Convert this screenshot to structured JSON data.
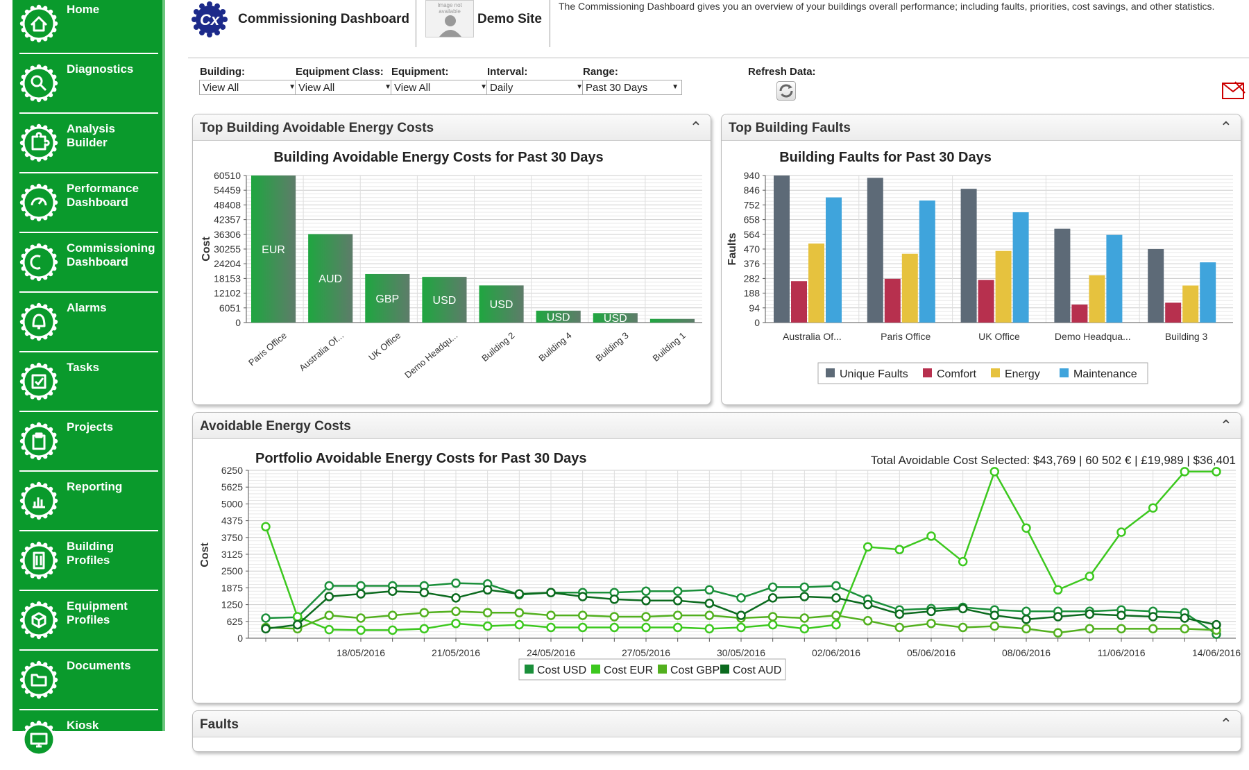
{
  "sidebar": {
    "items": [
      {
        "label": "Home",
        "icon": "home-icon"
      },
      {
        "label": "Diagnostics",
        "icon": "diagnostics-icon"
      },
      {
        "label": "Analysis Builder",
        "icon": "puzzle-icon"
      },
      {
        "label": "Performance Dashboard",
        "icon": "gauge-icon"
      },
      {
        "label": "Commissioning Dashboard",
        "icon": "cx-icon"
      },
      {
        "label": "Alarms",
        "icon": "bell-icon"
      },
      {
        "label": "Tasks",
        "icon": "checkbox-icon"
      },
      {
        "label": "Projects",
        "icon": "clipboard-icon"
      },
      {
        "label": "Reporting",
        "icon": "bar-chart-icon"
      },
      {
        "label": "Building Profiles",
        "icon": "building-icon"
      },
      {
        "label": "Equipment Profiles",
        "icon": "cube-icon"
      },
      {
        "label": "Documents",
        "icon": "folder-icon"
      },
      {
        "label": "Kiosk",
        "icon": "monitor-icon"
      }
    ]
  },
  "header": {
    "title": "Commissioning Dashboard",
    "logo_text": "Cx",
    "site_name": "Demo Site",
    "site_image_text": "Image not available",
    "description": "The Commissioning Dashboard gives you an overview of your buildings overall performance; including faults, priorities, cost savings, and other statistics."
  },
  "filters": [
    {
      "label": "Building:",
      "value": "View All"
    },
    {
      "label": "Equipment Class:",
      "value": "View All"
    },
    {
      "label": "Equipment:",
      "value": "View All"
    },
    {
      "label": "Interval:",
      "value": "Daily"
    },
    {
      "label": "Range:",
      "value": "Past 30 Days"
    }
  ],
  "refresh_label": "Refresh Data:",
  "panels": {
    "costs": "Top Building Avoidable Energy Costs",
    "faults": "Top Building Faults",
    "avoidable": "Avoidable Energy Costs",
    "faults_bottom": "Faults"
  },
  "colors": {
    "accent": "#0a9a2c",
    "unique": "#5d6a77",
    "comfort": "#b7304e",
    "energy": "#e6c23e",
    "maintenance": "#3fa4dc",
    "usd": "#1a8f3a",
    "eur": "#3cc81e",
    "gbp": "#52b01e",
    "aud": "#0b6a1e"
  },
  "chart_data": [
    {
      "type": "bar",
      "title": "Building Avoidable Energy Costs for Past 30 Days",
      "ylabel": "Cost",
      "ylim": [
        0,
        60510
      ],
      "yticks": [
        "60510",
        "54459",
        "48408",
        "42357",
        "36306",
        "30255",
        "24204",
        "18153",
        "12102",
        "6051",
        "0"
      ],
      "categories": [
        "Paris Office",
        "Australia Of...",
        "UK Office",
        "Demo Headqu...",
        "Building 2",
        "Building 4",
        "Building 3",
        "Building 1"
      ],
      "values": [
        60502,
        36401,
        19989,
        18800,
        15300,
        4900,
        3900,
        1500
      ],
      "labels": [
        "EUR",
        "AUD",
        "GBP",
        "USD",
        "USD",
        "USD",
        "USD",
        ""
      ]
    },
    {
      "type": "bar",
      "title": "Building Faults for Past 30 Days",
      "ylabel": "Faults",
      "ylim": [
        0,
        940
      ],
      "yticks": [
        "940",
        "846",
        "752",
        "658",
        "564",
        "470",
        "376",
        "282",
        "188",
        "94",
        "0"
      ],
      "categories": [
        "Australia Of...",
        "Paris Office",
        "UK Office",
        "Demo Headqua...",
        "Building 3"
      ],
      "series": [
        {
          "name": "Unique Faults",
          "values": [
            940,
            925,
            855,
            600,
            470
          ]
        },
        {
          "name": "Comfort",
          "values": [
            265,
            280,
            272,
            115,
            127
          ]
        },
        {
          "name": "Energy",
          "values": [
            505,
            440,
            458,
            302,
            237
          ]
        },
        {
          "name": "Maintenance",
          "values": [
            800,
            780,
            705,
            560,
            385
          ]
        }
      ]
    },
    {
      "type": "line",
      "title": "Portfolio Avoidable Energy Costs for Past 30 Days",
      "summary": "Total Avoidable Cost Selected: $43,769 | 60 502 € | £19,989 | $36,401",
      "ylabel": "Cost",
      "ylim": [
        0,
        6250
      ],
      "yticks": [
        "6250",
        "5625",
        "5000",
        "4375",
        "3750",
        "3125",
        "2500",
        "1875",
        "1250",
        "625",
        "0"
      ],
      "x": [
        "15/05/2016",
        "16/05/2016",
        "17/05/2016",
        "18/05/2016",
        "19/05/2016",
        "20/05/2016",
        "21/05/2016",
        "22/05/2016",
        "23/05/2016",
        "24/05/2016",
        "25/05/2016",
        "26/05/2016",
        "27/05/2016",
        "28/05/2016",
        "29/05/2016",
        "30/05/2016",
        "31/05/2016",
        "01/06/2016",
        "02/06/2016",
        "03/06/2016",
        "04/06/2016",
        "05/06/2016",
        "06/06/2016",
        "07/06/2016",
        "08/06/2016",
        "09/06/2016",
        "10/06/2016",
        "11/06/2016",
        "12/06/2016",
        "13/06/2016",
        "14/06/2016"
      ],
      "xticks": [
        "18/05/2016",
        "21/05/2016",
        "24/05/2016",
        "27/05/2016",
        "30/05/2016",
        "02/06/2016",
        "05/06/2016",
        "08/06/2016",
        "11/06/2016",
        "14/06/2016"
      ],
      "series": [
        {
          "name": "Cost USD",
          "values": [
            750,
            780,
            1950,
            1950,
            1950,
            1950,
            2050,
            2020,
            1620,
            1700,
            1700,
            1700,
            1750,
            1750,
            1800,
            1500,
            1900,
            1900,
            1950,
            1450,
            1050,
            1100,
            1150,
            1050,
            1000,
            1000,
            1000,
            1050,
            1000,
            950,
            150
          ]
        },
        {
          "name": "Cost EUR",
          "values": [
            4150,
            800,
            320,
            300,
            300,
            350,
            550,
            450,
            500,
            400,
            400,
            400,
            400,
            400,
            350,
            400,
            500,
            350,
            500,
            3400,
            3300,
            3800,
            2850,
            6200,
            4100,
            1800,
            2300,
            3950,
            4850,
            6200,
            6200
          ]
        },
        {
          "name": "Cost GBP",
          "values": [
            400,
            350,
            850,
            750,
            850,
            950,
            1000,
            950,
            950,
            850,
            850,
            800,
            800,
            850,
            850,
            750,
            800,
            750,
            850,
            650,
            400,
            550,
            400,
            450,
            350,
            200,
            350,
            350,
            350,
            350,
            300
          ]
        },
        {
          "name": "Cost AUD",
          "values": [
            350,
            500,
            1550,
            1650,
            1750,
            1700,
            1500,
            1800,
            1650,
            1700,
            1550,
            1450,
            1400,
            1400,
            1300,
            850,
            1500,
            1550,
            1500,
            1250,
            900,
            1000,
            1100,
            850,
            700,
            800,
            900,
            850,
            800,
            750,
            500
          ]
        }
      ]
    }
  ]
}
